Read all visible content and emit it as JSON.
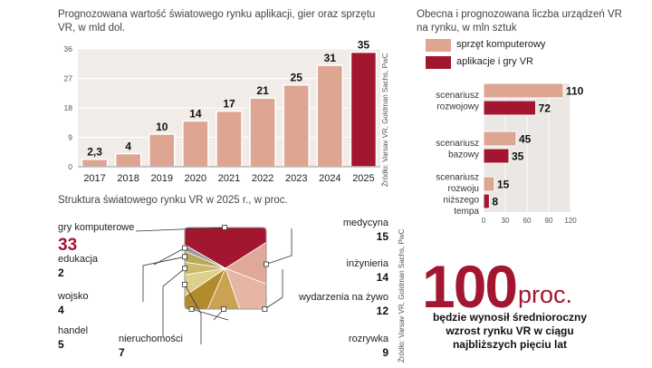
{
  "chart_data": [
    {
      "type": "bar",
      "title": "Prognozowana wartość światowego rynku aplikacji, gier oraz sprzętu VR, w mld dol.",
      "categories": [
        "2017",
        "2018",
        "2019",
        "2020",
        "2021",
        "2022",
        "2023",
        "2024",
        "2025"
      ],
      "values": [
        2.3,
        4,
        10,
        14,
        17,
        21,
        25,
        31,
        35
      ],
      "value_labels": [
        "2,3",
        "4",
        "10",
        "14",
        "17",
        "21",
        "25",
        "31",
        "35"
      ],
      "yticks": [
        0,
        9,
        18,
        27,
        36
      ],
      "ylim": [
        0,
        36
      ],
      "highlight_index": 8,
      "colors": {
        "base": "#dea593",
        "highlight": "#a3162f"
      },
      "source": "Źródło: Varsav VR, Goldman Sachs, PwC"
    },
    {
      "type": "bar",
      "orientation": "horizontal",
      "title": "Obecna i prognozowana liczba urządzeń VR na rynku, w mln sztuk",
      "legend": [
        "sprzęt komputerowy",
        "aplikacje i gry VR"
      ],
      "categories": [
        [
          "scenariusz",
          "rozwojowy"
        ],
        [
          "scenariusz",
          "bazowy"
        ],
        [
          "scenariusz",
          "rozwoju",
          "niższego",
          "tempa"
        ]
      ],
      "series": [
        {
          "name": "sprzęt komputerowy",
          "values": [
            110,
            45,
            15
          ],
          "color": "#dea593"
        },
        {
          "name": "aplikacje i gry VR",
          "values": [
            72,
            35,
            8
          ],
          "color": "#a3162f"
        }
      ],
      "xticks": [
        0,
        30,
        60,
        90,
        120
      ],
      "xlim": [
        0,
        120
      ]
    },
    {
      "type": "pie",
      "title": "Struktura światowego rynku VR  w 2025 r., w proc.",
      "segments": [
        {
          "label": "gry komputerowe",
          "value": 33,
          "color": "#a3162f"
        },
        {
          "label": "medycyna",
          "value": 15,
          "color": "#e0a896"
        },
        {
          "label": "inżynieria",
          "value": 14,
          "color": "#e7b5a3"
        },
        {
          "label": "wydarzenia na żywo",
          "value": 12,
          "color": "#c9a352"
        },
        {
          "label": "rozrywka",
          "value": 9,
          "color": "#b38a2c"
        },
        {
          "label": "nieruchomości",
          "value": 7,
          "color": "#ddd08a"
        },
        {
          "label": "handel",
          "value": 5,
          "color": "#cdb96a"
        },
        {
          "label": "wojsko",
          "value": 4,
          "color": "#b9a85a"
        },
        {
          "label": "edukacja",
          "value": 2,
          "color": "#9a9a9a"
        }
      ],
      "source": "Źródło: Varsav VR, Goldman Sachs, PwC"
    }
  ],
  "highlight": {
    "number": "100",
    "unit": "proc.",
    "text": "będzie wynosił średnioroczny wzrost rynku VR w ciągu najbliższych pięciu lat"
  }
}
